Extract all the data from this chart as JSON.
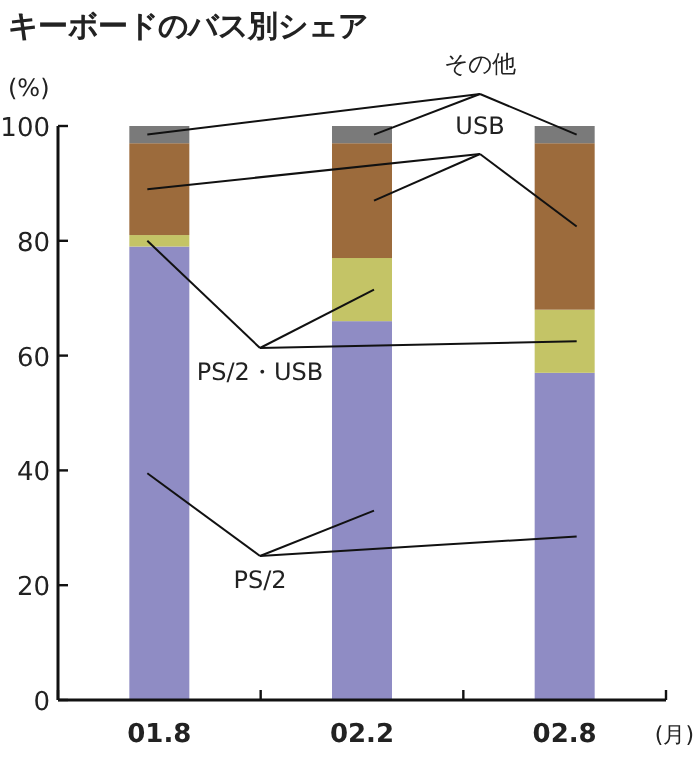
{
  "chart_data": {
    "type": "bar",
    "stacked": true,
    "title": "キーボードのバス別シェア",
    "ylabel": "(%)",
    "xlabel": "(月)",
    "categories": [
      "01.8",
      "02.2",
      "02.8"
    ],
    "series": [
      {
        "name": "PS/2",
        "color": "#8f8cc4",
        "values": [
          79,
          66,
          57
        ]
      },
      {
        "name": "PS/2・USB",
        "color": "#c4c466",
        "values": [
          2,
          11,
          11
        ]
      },
      {
        "name": "USB",
        "color": "#9c6b3c",
        "values": [
          16,
          20,
          29
        ]
      },
      {
        "name": "その他",
        "color": "#7a7a7a",
        "values": [
          3,
          3,
          3
        ]
      }
    ],
    "ylim": [
      0,
      100
    ],
    "yticks": [
      0,
      20,
      40,
      60,
      80,
      100
    ],
    "legend": false
  }
}
